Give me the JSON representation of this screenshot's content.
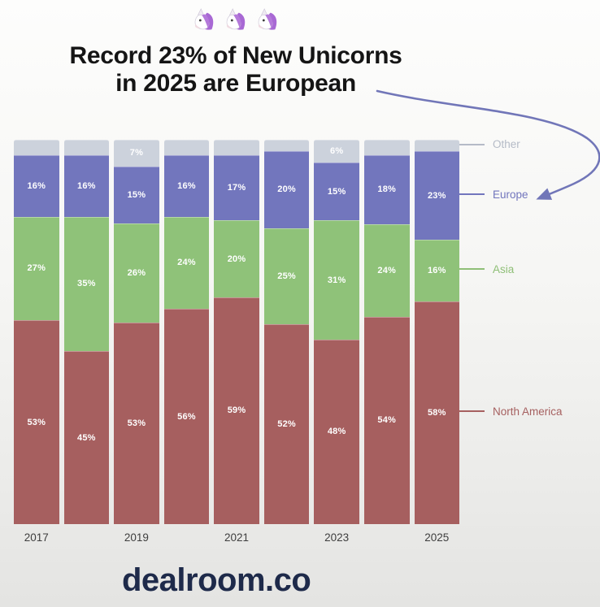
{
  "header": {
    "title_line1": "Record 23% of New Unicorns",
    "title_line2": "in 2025 are European"
  },
  "chart_data": {
    "type": "bar",
    "variant": "stacked-percent-column",
    "title": "Record 23% of New Unicorns in 2025 are European",
    "categories": [
      "2017",
      "2018",
      "2019",
      "2020",
      "2021",
      "2022",
      "2023",
      "2024",
      "2025"
    ],
    "x_tick_labels": [
      "2017",
      "2019",
      "2021",
      "2023",
      "2025"
    ],
    "series": [
      {
        "name": "North America",
        "color": "#a65f5f",
        "legend_color": "#a66060",
        "values": [
          53,
          45,
          53,
          56,
          59,
          52,
          48,
          54,
          58
        ],
        "show_labels": "all"
      },
      {
        "name": "Asia",
        "color": "#8fc279",
        "legend_color": "#8fbf77",
        "values": [
          27,
          35,
          26,
          24,
          20,
          25,
          31,
          24,
          16
        ],
        "show_labels": "all"
      },
      {
        "name": "Europe",
        "color": "#7276bd",
        "legend_color": "#7276bd",
        "values": [
          16,
          16,
          15,
          16,
          17,
          20,
          15,
          18,
          23
        ],
        "show_labels": "all"
      },
      {
        "name": "Other",
        "color": "#ccd2dc",
        "legend_color": "#b5bbc7",
        "values": [
          4,
          4,
          7,
          4,
          4,
          3,
          6,
          4,
          3
        ],
        "show_labels": [
          "2019",
          "2023"
        ]
      }
    ],
    "value_suffix": "%",
    "ylim": [
      0,
      100
    ],
    "grid": false,
    "legend_position": "right",
    "annotation": {
      "arrow_color": "#7176b8",
      "points_to": "Europe"
    }
  },
  "footer": {
    "brand": "dealroom.co"
  }
}
